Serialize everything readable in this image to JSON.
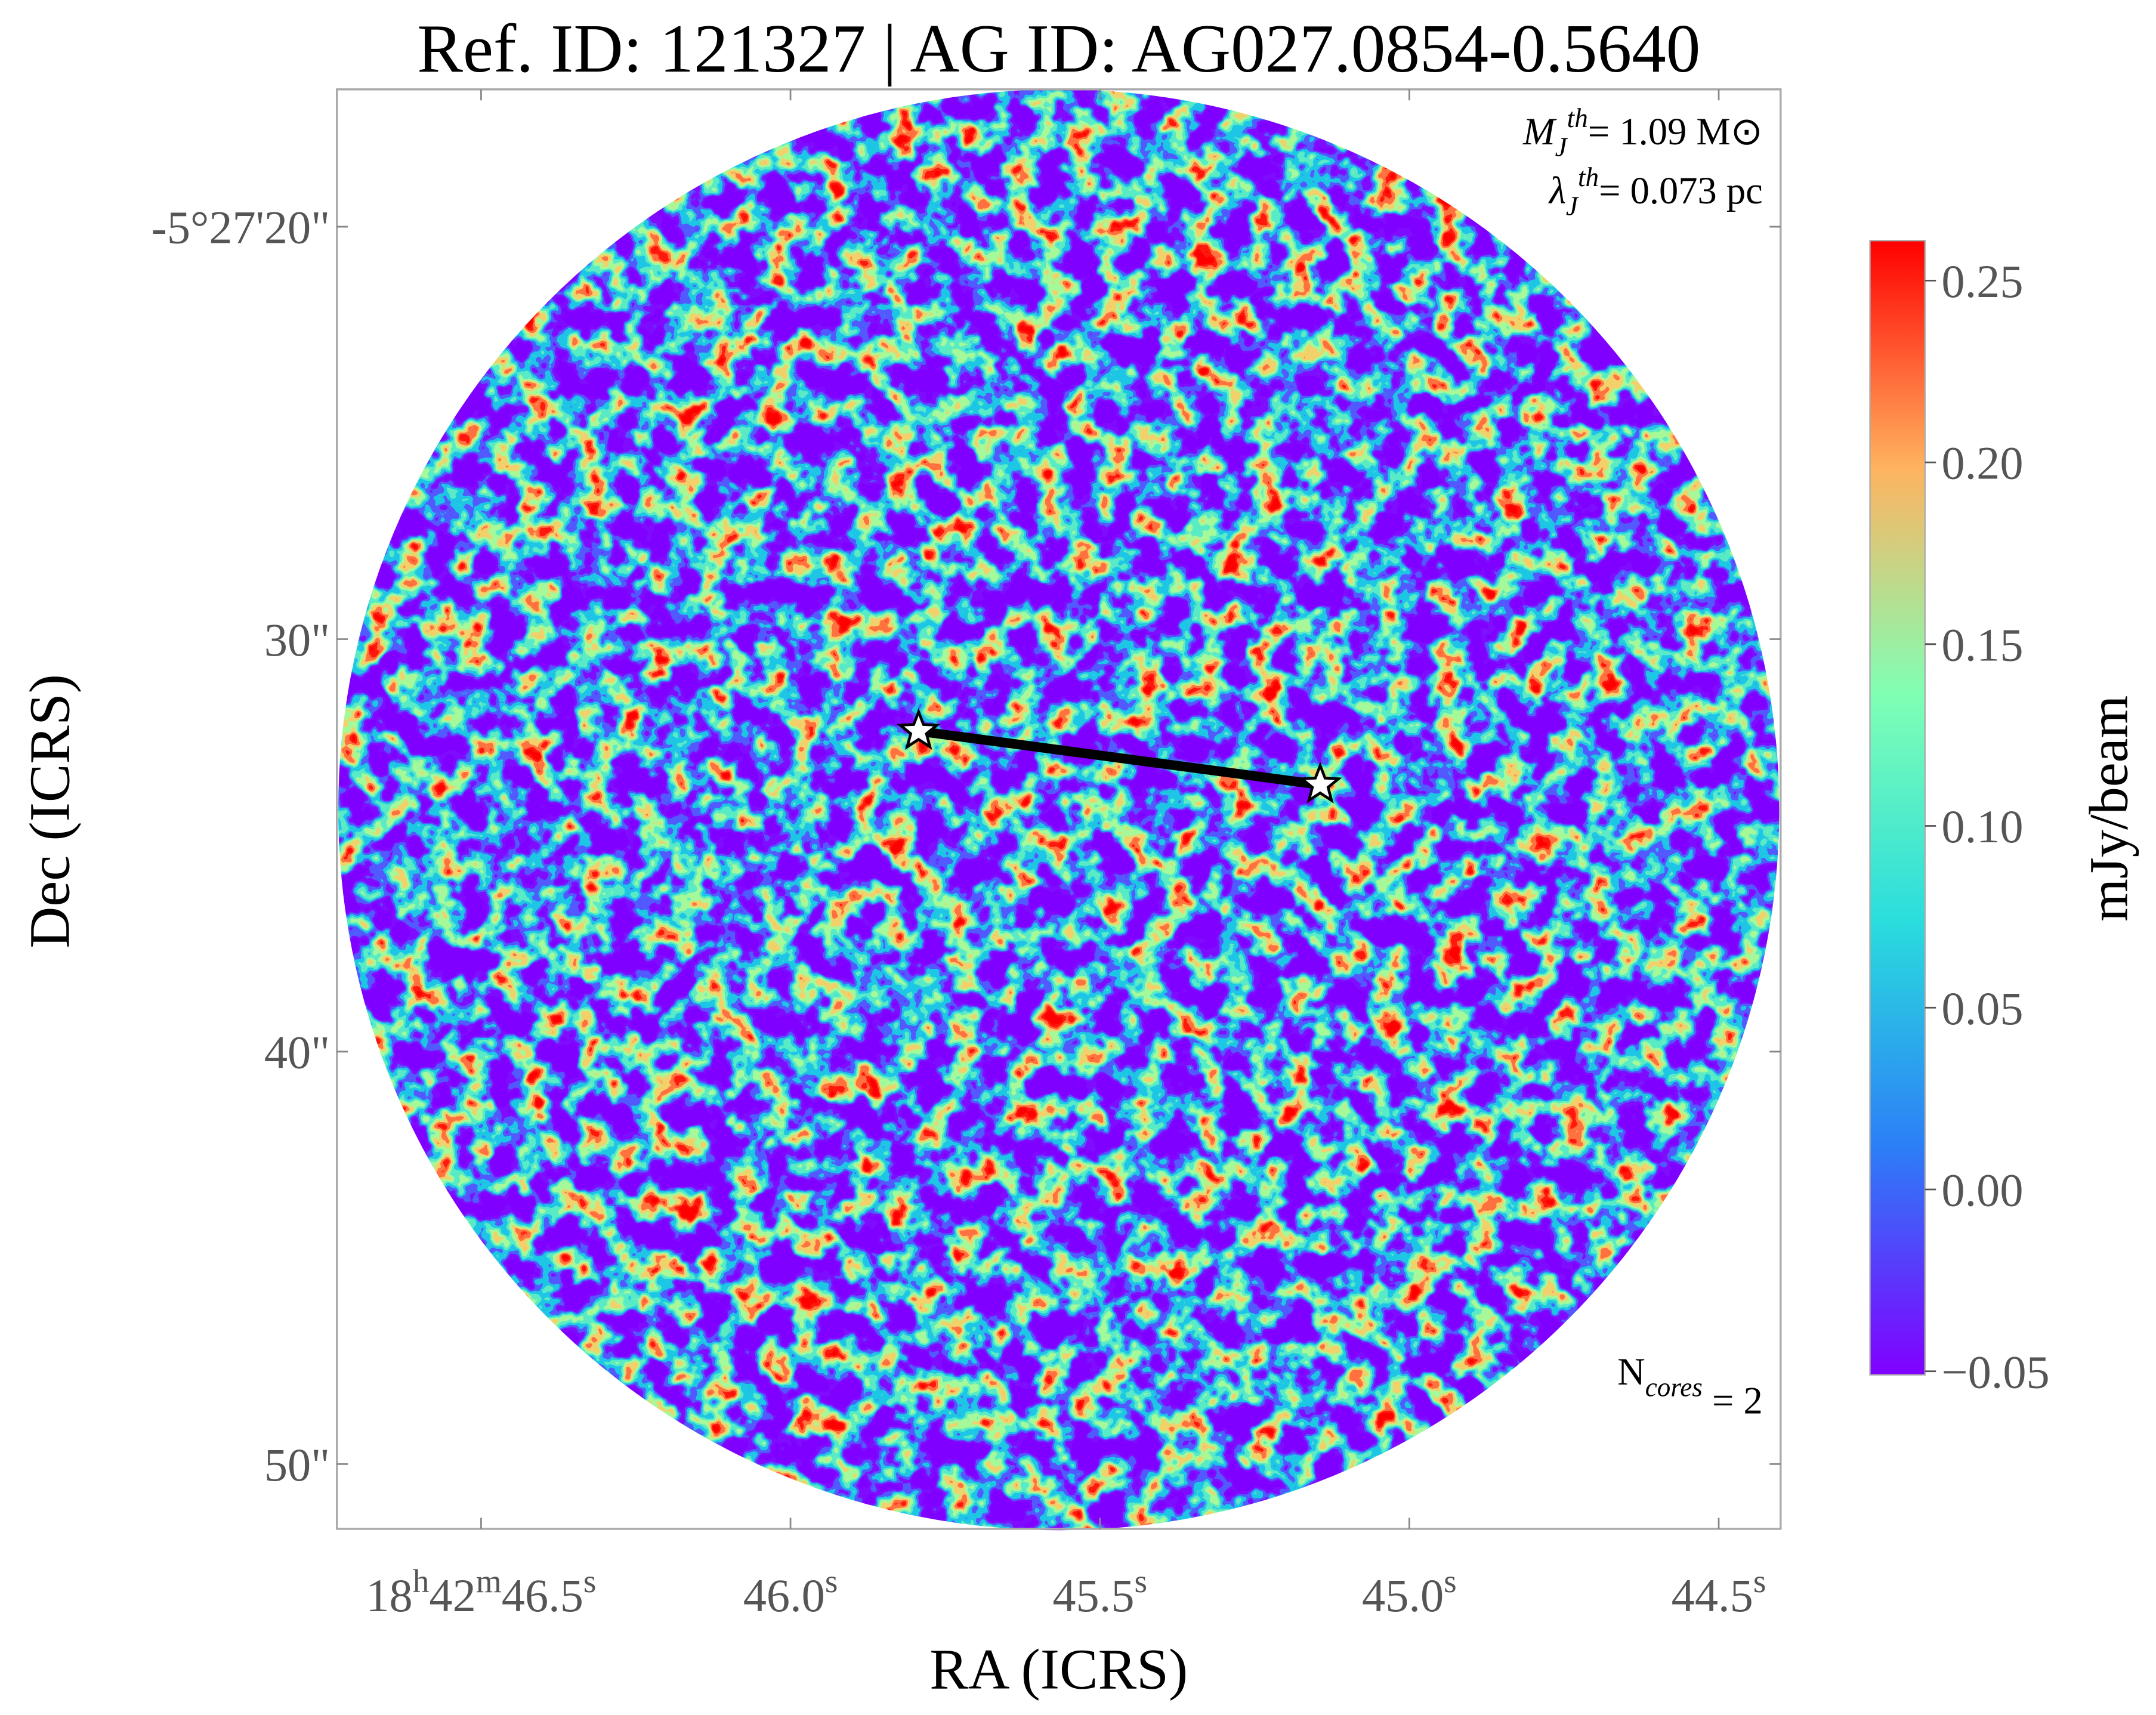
{
  "chart_data": {
    "type": "image",
    "title": "Ref. ID: 121327 | AG ID: AG027.0854-0.5640",
    "x_label": "RA (ICRS)",
    "y_label": "Dec (ICRS)",
    "xlim": [
      46.733,
      44.4
    ],
    "xticks": [
      {
        "value": 46.5,
        "label": "18h42m46.5s"
      },
      {
        "value": 46.0,
        "label": "46.0s"
      },
      {
        "value": 45.5,
        "label": "45.5s"
      },
      {
        "value": 45.0,
        "label": "45.0s"
      },
      {
        "value": 44.5,
        "label": "44.5s"
      }
    ],
    "ylim": [
      16.67,
      51.57
    ],
    "yticks": [
      {
        "value": 20,
        "label": "-5°27'20\""
      },
      {
        "value": 30,
        "label": "30\""
      },
      {
        "value": 40,
        "label": "40\""
      },
      {
        "value": 50,
        "label": "50\""
      }
    ],
    "colorbar": {
      "label": "mJy/beam",
      "lim": [
        -0.051,
        0.261
      ],
      "ticks": [
        {
          "value": 0.25,
          "label": "0.25"
        },
        {
          "value": 0.2,
          "label": "0.20"
        },
        {
          "value": 0.15,
          "label": "0.15"
        },
        {
          "value": 0.1,
          "label": "0.10"
        },
        {
          "value": 0.05,
          "label": "0.05"
        },
        {
          "value": 0,
          "label": "0.00"
        },
        {
          "value": -0.05,
          "label": "−0.05"
        }
      ]
    },
    "cores": {
      "x": [
        45.793,
        45.144
      ],
      "y": [
        32.23,
        33.53
      ]
    },
    "annotations": [
      "MJth= 1.09 M⊙",
      "λJth= 0.073 pc",
      "Ncores = 2"
    ]
  }
}
